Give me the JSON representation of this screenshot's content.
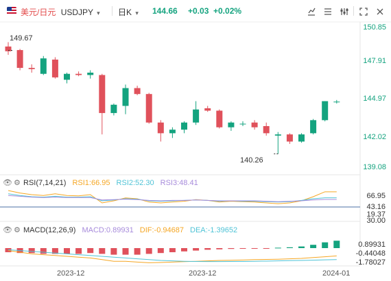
{
  "header": {
    "symbol_cn": "美元/日元",
    "symbol": "USDJPY",
    "timeframe": "日K",
    "price": "144.66",
    "change": "+0.03",
    "change_pct": "+0.02%",
    "toolbar_icons": [
      "chart-draw-icon",
      "compare-icon",
      "settings-icon",
      "candle-style-icon",
      "fullscreen-icon",
      "close-icon"
    ]
  },
  "price_axis": [
    "150.85",
    "147.91",
    "144.97",
    "142.02",
    "139.08"
  ],
  "annotations": {
    "high": "149.67",
    "low": "140.26"
  },
  "rsi": {
    "title": "RSI(7,14,21)",
    "rsi1": "RSI1:66.95",
    "rsi2": "RSI2:52.30",
    "rsi3": "RSI3:48.41",
    "axis": [
      "66.95",
      "43.16",
      "19.37",
      "30.00"
    ]
  },
  "macd": {
    "title": "MACD(12,26,9)",
    "macd": "MACD:0.89931",
    "dif": "DIF:-0.94687",
    "dea": "DEA:-1.39652",
    "axis": [
      "0.89931",
      "-0.44048",
      "-1.78027"
    ]
  },
  "dates": [
    "2023-12",
    "2023-12",
    "2024-01"
  ],
  "colors": {
    "up": "#14a37f",
    "down": "#e0515b",
    "rsi1": "#f5a623",
    "rsi2": "#4fc3d6",
    "rsi3": "#a78bdb",
    "dif": "#f5a623",
    "dea": "#4fc3d6"
  },
  "chart_data": {
    "type": "candlestick",
    "candles": [
      {
        "o": 149.3,
        "h": 149.67,
        "l": 148.6,
        "c": 148.9
      },
      {
        "o": 149.0,
        "h": 149.1,
        "l": 147.3,
        "c": 147.5
      },
      {
        "o": 147.5,
        "h": 147.8,
        "l": 147.1,
        "c": 147.4
      },
      {
        "o": 147.0,
        "h": 148.5,
        "l": 146.9,
        "c": 148.3
      },
      {
        "o": 148.2,
        "h": 148.4,
        "l": 146.6,
        "c": 146.7
      },
      {
        "o": 146.5,
        "h": 147.1,
        "l": 146.2,
        "c": 147.0
      },
      {
        "o": 147.0,
        "h": 147.2,
        "l": 146.8,
        "c": 146.9
      },
      {
        "o": 146.9,
        "h": 147.3,
        "l": 146.6,
        "c": 147.1
      },
      {
        "o": 146.9,
        "h": 147.0,
        "l": 141.9,
        "c": 143.7
      },
      {
        "o": 143.7,
        "h": 144.5,
        "l": 143.5,
        "c": 144.4
      },
      {
        "o": 144.3,
        "h": 146.1,
        "l": 143.6,
        "c": 145.8
      },
      {
        "o": 145.8,
        "h": 146.0,
        "l": 145.2,
        "c": 145.3
      },
      {
        "o": 145.3,
        "h": 145.4,
        "l": 142.8,
        "c": 142.9
      },
      {
        "o": 142.9,
        "h": 143.1,
        "l": 141.3,
        "c": 142.0
      },
      {
        "o": 142.0,
        "h": 142.5,
        "l": 141.6,
        "c": 142.3
      },
      {
        "o": 142.3,
        "h": 143.0,
        "l": 142.0,
        "c": 142.9
      },
      {
        "o": 142.9,
        "h": 144.7,
        "l": 142.7,
        "c": 144.0
      },
      {
        "o": 144.1,
        "h": 144.3,
        "l": 143.8,
        "c": 143.9
      },
      {
        "o": 143.9,
        "h": 144.0,
        "l": 142.4,
        "c": 142.5
      },
      {
        "o": 142.5,
        "h": 143.0,
        "l": 142.2,
        "c": 142.9
      },
      {
        "o": 142.8,
        "h": 143.0,
        "l": 142.6,
        "c": 142.8
      },
      {
        "o": 142.9,
        "h": 143.1,
        "l": 142.3,
        "c": 142.5
      },
      {
        "o": 142.6,
        "h": 142.9,
        "l": 141.8,
        "c": 142.0
      },
      {
        "o": 141.8,
        "h": 142.1,
        "l": 140.26,
        "c": 141.9
      },
      {
        "o": 141.9,
        "h": 142.0,
        "l": 141.1,
        "c": 141.3
      },
      {
        "o": 141.3,
        "h": 142.0,
        "l": 141.2,
        "c": 141.9
      },
      {
        "o": 142.0,
        "h": 143.2,
        "l": 141.9,
        "c": 143.1
      },
      {
        "o": 143.1,
        "h": 144.7,
        "l": 143.0,
        "c": 144.7
      },
      {
        "o": 144.66,
        "h": 144.8,
        "l": 144.5,
        "c": 144.66
      }
    ],
    "rsi1": [
      70,
      64,
      60,
      58,
      62,
      58,
      57,
      60,
      40,
      45,
      52,
      50,
      42,
      40,
      42,
      44,
      48,
      46,
      42,
      44,
      43,
      42,
      40,
      38,
      40,
      45,
      55,
      66.95,
      66.95
    ],
    "rsi2": [
      62,
      58,
      55,
      54,
      56,
      54,
      54,
      55,
      45,
      47,
      50,
      49,
      45,
      44,
      45,
      46,
      47,
      46,
      44,
      45,
      44,
      44,
      43,
      42,
      43,
      46,
      50,
      52.3,
      52.3
    ],
    "rsi3": [
      58,
      56,
      54,
      53,
      54,
      53,
      53,
      53,
      47,
      48,
      49,
      48,
      46,
      45,
      46,
      46,
      47,
      46,
      45,
      45,
      45,
      45,
      44,
      43,
      44,
      45,
      47,
      48.41,
      48.41
    ],
    "macd_hist": [
      -0.5,
      -0.6,
      -0.6,
      -0.7,
      -0.7,
      -0.7,
      -0.7,
      -0.6,
      -0.7,
      -0.8,
      -0.8,
      -0.8,
      -0.7,
      -0.6,
      -0.5,
      -0.4,
      -0.3,
      -0.2,
      -0.15,
      -0.1,
      -0.05,
      -0.03,
      -0.02,
      0.05,
      0.1,
      0.2,
      0.4,
      0.7,
      0.89931
    ],
    "dif": [
      -0.3,
      -0.5,
      -0.7,
      -0.8,
      -0.9,
      -1.0,
      -1.1,
      -1.2,
      -1.4,
      -1.6,
      -1.6,
      -1.7,
      -1.78,
      -1.75,
      -1.7,
      -1.65,
      -1.6,
      -1.55,
      -1.5,
      -1.48,
      -1.45,
      -1.4,
      -1.38,
      -1.35,
      -1.3,
      -1.25,
      -1.15,
      -1.05,
      -0.94687
    ],
    "dea": [
      -0.2,
      -0.3,
      -0.4,
      -0.5,
      -0.6,
      -0.7,
      -0.8,
      -0.9,
      -1.0,
      -1.1,
      -1.2,
      -1.3,
      -1.4,
      -1.5,
      -1.55,
      -1.6,
      -1.62,
      -1.64,
      -1.64,
      -1.63,
      -1.62,
      -1.6,
      -1.58,
      -1.55,
      -1.52,
      -1.5,
      -1.47,
      -1.43,
      -1.39652
    ]
  }
}
